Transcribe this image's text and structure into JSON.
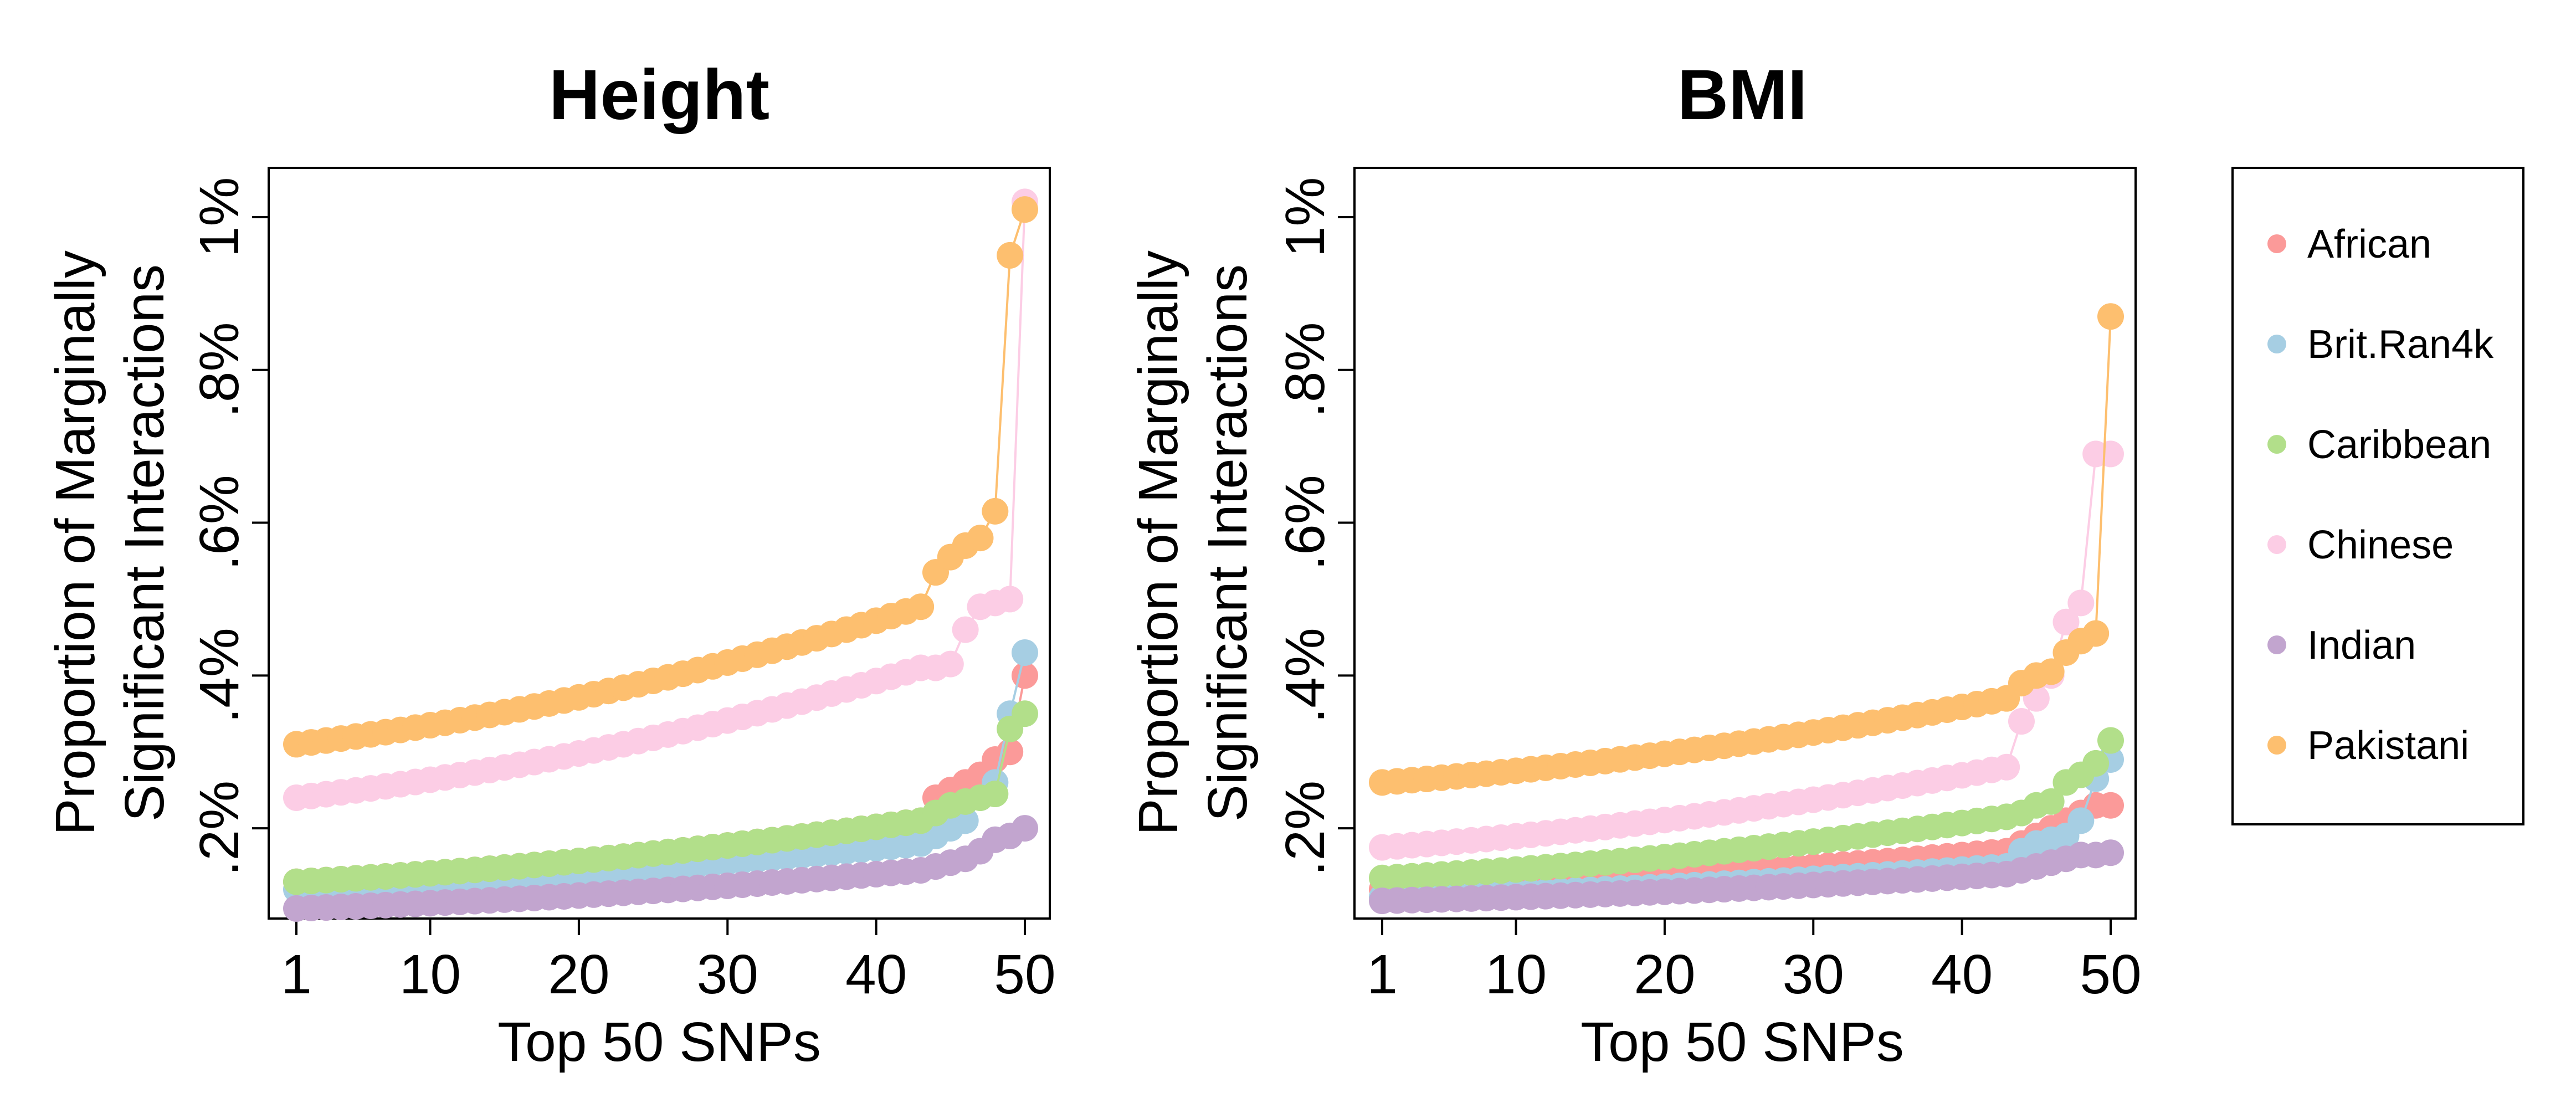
{
  "chart_data": [
    {
      "type": "line",
      "title": "Height",
      "xlabel": "Top 50 SNPs",
      "ylabel": [
        "Proportion of Marginally",
        "Significant Interactions"
      ],
      "xlim": [
        1,
        50
      ],
      "ylim": [
        0.1,
        1.05
      ],
      "x_ticks": [
        "1",
        "10",
        "20",
        "30",
        "40",
        "50"
      ],
      "y_ticks": [
        ".2%",
        ".4%",
        ".6%",
        ".8%",
        "1%"
      ],
      "y_tick_values": [
        0.2,
        0.4,
        0.6,
        0.8,
        1.0
      ],
      "grid": false,
      "series": [
        {
          "name": "African",
          "color": "#fb9a99",
          "start": 0.13,
          "mid": 0.21,
          "tail": [
            0.24,
            0.25,
            0.26,
            0.27,
            0.29,
            0.3,
            0.4
          ]
        },
        {
          "name": "Brit.Ran4k",
          "color": "#a6cee3",
          "start": 0.12,
          "mid": 0.18,
          "tail": [
            0.19,
            0.2,
            0.21,
            0.24,
            0.26,
            0.35,
            0.43
          ]
        },
        {
          "name": "Caribbean",
          "color": "#b2df8a",
          "start": 0.13,
          "mid": 0.21,
          "tail": [
            0.22,
            0.23,
            0.235,
            0.24,
            0.245,
            0.33,
            0.35
          ]
        },
        {
          "name": "Chinese",
          "color": "#fccde5",
          "start": 0.24,
          "mid": 0.41,
          "tail": [
            0.41,
            0.415,
            0.46,
            0.49,
            0.495,
            0.5,
            1.02
          ]
        },
        {
          "name": "Indian",
          "color": "#c2a5cf",
          "start": 0.095,
          "mid": 0.145,
          "tail": [
            0.15,
            0.155,
            0.16,
            0.17,
            0.185,
            0.19,
            0.2
          ]
        },
        {
          "name": "Pakistani",
          "color": "#fdbf6f",
          "start": 0.31,
          "mid": 0.49,
          "tail": [
            0.535,
            0.555,
            0.57,
            0.58,
            0.615,
            0.95,
            1.01
          ]
        }
      ]
    },
    {
      "type": "line",
      "title": "BMI",
      "xlabel": "Top 50 SNPs",
      "ylabel": [
        "Proportion of Marginally",
        "Significant Interactions"
      ],
      "xlim": [
        1,
        50
      ],
      "ylim": [
        0.1,
        1.05
      ],
      "x_ticks": [
        "1",
        "10",
        "20",
        "30",
        "40",
        "50"
      ],
      "y_ticks": [
        ".2%",
        ".4%",
        ".6%",
        ".8%",
        "1%"
      ],
      "y_tick_values": [
        0.2,
        0.4,
        0.6,
        0.8,
        1.0
      ],
      "grid": false,
      "series": [
        {
          "name": "African",
          "color": "#fb9a99",
          "start": 0.12,
          "mid": 0.17,
          "tail": [
            0.18,
            0.19,
            0.2,
            0.21,
            0.22,
            0.23,
            0.23
          ]
        },
        {
          "name": "Brit.Ran4k",
          "color": "#a6cee3",
          "start": 0.11,
          "mid": 0.15,
          "tail": [
            0.17,
            0.18,
            0.185,
            0.19,
            0.21,
            0.265,
            0.29
          ]
        },
        {
          "name": "Caribbean",
          "color": "#b2df8a",
          "start": 0.135,
          "mid": 0.215,
          "tail": [
            0.22,
            0.23,
            0.235,
            0.26,
            0.27,
            0.285,
            0.315
          ]
        },
        {
          "name": "Chinese",
          "color": "#fccde5",
          "start": 0.175,
          "mid": 0.28,
          "tail": [
            0.34,
            0.37,
            0.4,
            0.47,
            0.495,
            0.69,
            0.69
          ]
        },
        {
          "name": "Indian",
          "color": "#c2a5cf",
          "start": 0.105,
          "mid": 0.14,
          "tail": [
            0.145,
            0.15,
            0.155,
            0.16,
            0.165,
            0.165,
            0.168
          ]
        },
        {
          "name": "Pakistani",
          "color": "#fdbf6f",
          "start": 0.26,
          "mid": 0.37,
          "tail": [
            0.39,
            0.4,
            0.405,
            0.43,
            0.445,
            0.455,
            0.87
          ]
        }
      ]
    }
  ],
  "legend": {
    "placement": "right",
    "items": [
      "African",
      "Brit.Ran4k",
      "Caribbean",
      "Chinese",
      "Indian",
      "Pakistani"
    ]
  }
}
